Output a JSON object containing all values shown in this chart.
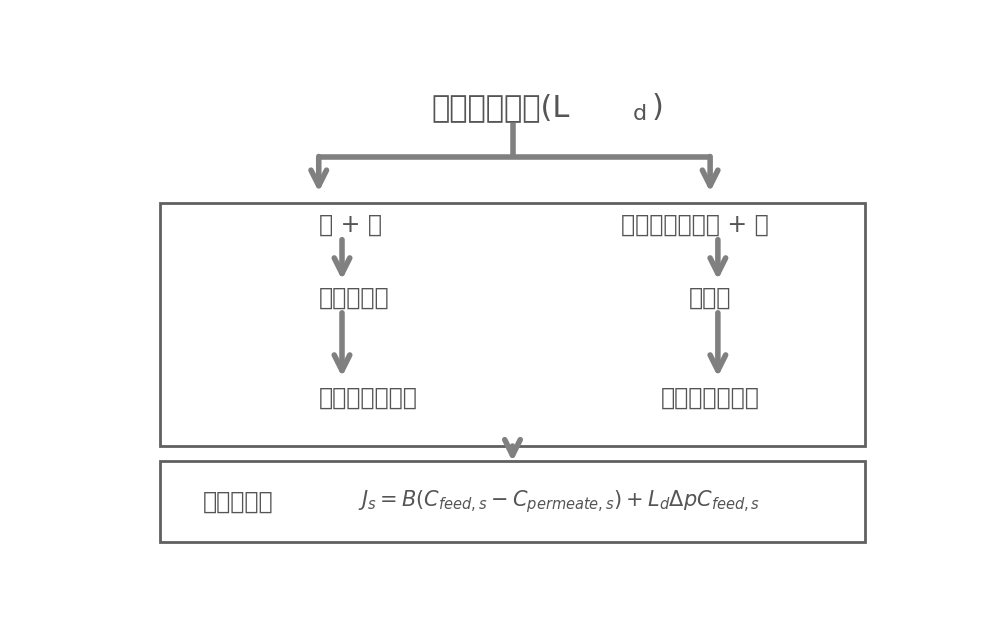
{
  "title_main": "对流扩散系数(L",
  "title_sub": "d",
  "title_close": ")",
  "left_row1": "盐 + 水",
  "left_row2": "脱盐致密膜",
  "left_row3": "评估脱盐膜缺陷",
  "right_row1": "高分子聚电解质 + 水",
  "right_row2": "多孔膜",
  "right_row3": "评估多孔膜缺陷",
  "formula_prefix": "评估公式：",
  "arrow_color": "#808080",
  "box_edge_color": "#606060",
  "text_color": "#555555",
  "bg_color": "#ffffff",
  "fig_bg": "#ffffff",
  "title_fontsize": 22,
  "body_fontsize": 17,
  "formula_fontsize": 15,
  "arrow_lw": 4.0,
  "arrow_mutation_scale": 28
}
